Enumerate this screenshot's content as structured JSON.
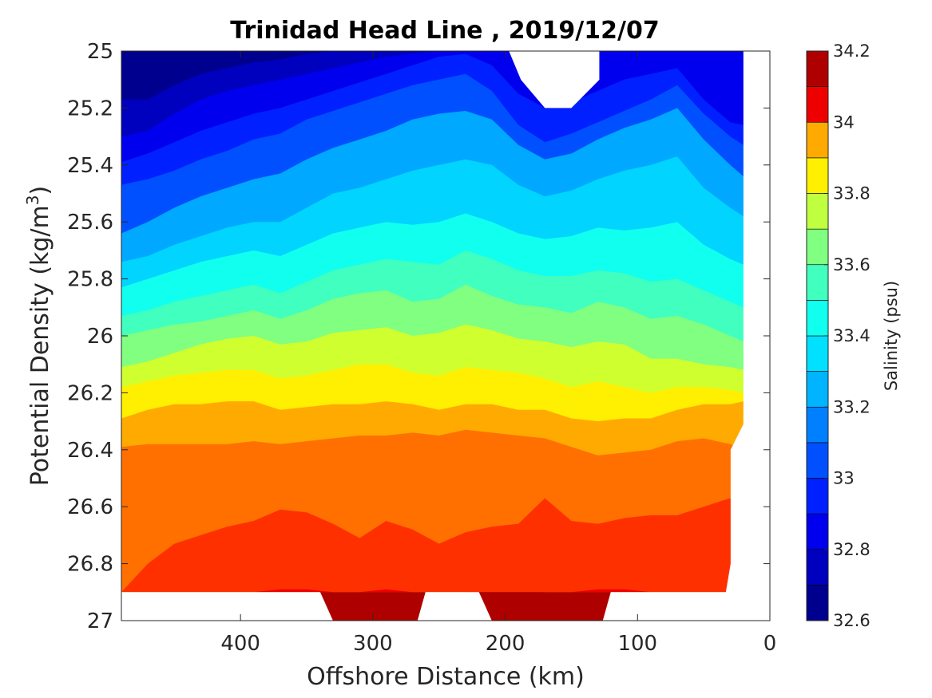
{
  "chart_data": {
    "type": "filled-contour",
    "title": "Trinidad Head Line , 2019/12/07",
    "xlabel": "Offshore Distance (km)",
    "ylabel": "Potential Density (kg/m^3)",
    "ylabel_parts": {
      "main": "Potential Density (kg/m",
      "sup": "3",
      "close": ")"
    },
    "colorbar_label": "Salinity (psu)",
    "xlim": [
      490,
      0
    ],
    "x_reversed": true,
    "ylim": [
      25,
      27
    ],
    "y_reversed": true,
    "xticks": [
      400,
      300,
      200,
      100,
      0
    ],
    "xtick_labels": [
      "400",
      "300",
      "200",
      "100",
      "0"
    ],
    "yticks": [
      25,
      25.2,
      25.4,
      25.6,
      25.8,
      26,
      26.2,
      26.4,
      26.6,
      26.8,
      27
    ],
    "ytick_labels": [
      "25",
      "25.2",
      "25.4",
      "25.6",
      "25.8",
      "26",
      "26.2",
      "26.4",
      "26.6",
      "26.8",
      "27"
    ],
    "colorbar_range": [
      32.6,
      34.2
    ],
    "colorbar_ticks": [
      32.6,
      32.8,
      33,
      33.2,
      33.4,
      33.6,
      33.8,
      34,
      34.2
    ],
    "colorbar_tick_labels": [
      "32.6",
      "32.8",
      "33",
      "33.2",
      "33.4",
      "33.6",
      "33.8",
      "34",
      "34.2"
    ],
    "levels": [
      32.6,
      32.7,
      32.8,
      32.9,
      33.0,
      33.1,
      33.2,
      33.3,
      33.4,
      33.5,
      33.6,
      33.7,
      33.8,
      33.9,
      34.0,
      34.1,
      34.2
    ],
    "colors": [
      "#00008f",
      "#0000bf",
      "#0000ef",
      "#0020ff",
      "#0050ff",
      "#0080ff",
      "#00b0ff",
      "#00e0ff",
      "#10ffef",
      "#40ffbf",
      "#70ff8f",
      "#a0ff60",
      "#d0ff30",
      "#ffff00",
      "#ffcf00",
      "#ff9f00",
      "#ff7000",
      "#ff4000",
      "#ff1000",
      "#df0000",
      "#af0000"
    ],
    "band_colors": [
      "#00008f",
      "#0000bf",
      "#0000ef",
      "#0020ff",
      "#0050ff",
      "#00a8ff",
      "#00d4ff",
      "#10ffef",
      "#40ffbf",
      "#80ff80",
      "#d0ff30",
      "#ffef00",
      "#ffaa00",
      "#ff7000",
      "#ff3000",
      "#ef0000",
      "#af0000"
    ],
    "x_stations": [
      490,
      470,
      450,
      430,
      410,
      390,
      370,
      350,
      330,
      310,
      290,
      270,
      250,
      230,
      210,
      190,
      170,
      150,
      130,
      110,
      90,
      70,
      50,
      30,
      20
    ],
    "contours": [
      {
        "level": 32.7,
        "y": [
          25.17,
          25.17,
          25.12,
          25.08,
          25.06,
          25.04,
          25.03,
          25.01,
          25.0,
          25.0,
          25.0,
          25.0,
          25.0,
          25.0,
          25.0,
          25.0,
          25.0,
          25.0,
          25.0,
          25.0,
          25.0,
          25.0,
          25.05,
          25.1,
          25.12
        ]
      },
      {
        "level": 32.8,
        "y": [
          25.3,
          25.28,
          25.22,
          25.17,
          25.14,
          25.12,
          25.1,
          25.08,
          25.06,
          25.04,
          25.02,
          25.01,
          25.0,
          25.0,
          25.0,
          25.0,
          25.0,
          25.0,
          25.0,
          25.0,
          25.0,
          25.0,
          25.0,
          25.0,
          25.0
        ]
      },
      {
        "level": 32.9,
        "y": [
          25.39,
          25.36,
          25.32,
          25.28,
          25.25,
          25.22,
          25.2,
          25.17,
          25.14,
          25.11,
          25.08,
          25.05,
          25.02,
          25.01,
          25.05,
          25.15,
          25.2,
          25.18,
          25.14,
          25.1,
          25.08,
          25.06,
          25.17,
          25.25,
          25.26
        ]
      },
      {
        "level": 33.0,
        "y": [
          25.47,
          25.45,
          25.42,
          25.38,
          25.35,
          25.31,
          25.29,
          25.24,
          25.21,
          25.18,
          25.15,
          25.12,
          25.1,
          25.08,
          25.14,
          25.26,
          25.32,
          25.29,
          25.25,
          25.21,
          25.17,
          25.12,
          25.22,
          25.3,
          25.33
        ]
      },
      {
        "level": 33.1,
        "y": [
          25.64,
          25.6,
          25.55,
          25.51,
          25.48,
          25.45,
          25.43,
          25.38,
          25.34,
          25.31,
          25.28,
          25.24,
          25.22,
          25.21,
          25.24,
          25.33,
          25.38,
          25.36,
          25.31,
          25.27,
          25.24,
          25.2,
          25.31,
          25.4,
          25.44
        ]
      },
      {
        "level": 33.2,
        "y": [
          25.74,
          25.72,
          25.68,
          25.65,
          25.62,
          25.6,
          25.6,
          25.55,
          25.5,
          25.48,
          25.45,
          25.42,
          25.4,
          25.38,
          25.4,
          25.47,
          25.51,
          25.49,
          25.45,
          25.42,
          25.4,
          25.37,
          25.48,
          25.55,
          25.58
        ]
      },
      {
        "level": 33.3,
        "y": [
          25.83,
          25.8,
          25.77,
          25.74,
          25.72,
          25.7,
          25.72,
          25.68,
          25.64,
          25.62,
          25.6,
          25.61,
          25.6,
          25.57,
          25.6,
          25.64,
          25.66,
          25.65,
          25.62,
          25.63,
          25.62,
          25.6,
          25.68,
          25.73,
          25.75
        ]
      },
      {
        "level": 33.4,
        "y": [
          25.93,
          25.91,
          25.88,
          25.86,
          25.84,
          25.82,
          25.85,
          25.81,
          25.77,
          25.75,
          25.73,
          25.74,
          25.75,
          25.7,
          25.73,
          25.77,
          25.79,
          25.79,
          25.77,
          25.78,
          25.81,
          25.8,
          25.84,
          25.88,
          25.9
        ]
      },
      {
        "level": 33.5,
        "y": [
          26.0,
          25.98,
          25.96,
          25.95,
          25.93,
          25.91,
          25.94,
          25.91,
          25.87,
          25.85,
          25.84,
          25.88,
          25.87,
          25.82,
          25.86,
          25.89,
          25.9,
          25.92,
          25.88,
          25.9,
          25.94,
          25.93,
          25.96,
          26.0,
          26.02
        ]
      },
      {
        "level": 33.6,
        "y": [
          26.11,
          26.09,
          26.06,
          26.03,
          26.01,
          26.0,
          26.03,
          26.02,
          25.99,
          25.98,
          25.97,
          26.0,
          25.99,
          25.96,
          25.98,
          26.01,
          26.02,
          26.04,
          26.02,
          26.03,
          26.08,
          26.08,
          26.1,
          26.11,
          26.12
        ]
      },
      {
        "level": 33.7,
        "y": [
          26.18,
          26.16,
          26.14,
          26.13,
          26.12,
          26.12,
          26.15,
          26.14,
          26.12,
          26.1,
          26.1,
          26.13,
          26.14,
          26.11,
          26.12,
          26.13,
          26.15,
          26.18,
          26.16,
          26.18,
          26.2,
          26.18,
          26.18,
          26.19,
          26.2
        ]
      },
      {
        "level": 33.8,
        "y": [
          26.29,
          26.26,
          26.24,
          26.24,
          26.23,
          26.23,
          26.26,
          26.25,
          26.24,
          26.24,
          26.23,
          26.24,
          26.26,
          26.24,
          26.24,
          26.26,
          26.26,
          26.29,
          26.3,
          26.29,
          26.29,
          26.26,
          26.24,
          26.24,
          26.23
        ]
      },
      {
        "level": 33.9,
        "y": [
          26.39,
          26.38,
          26.38,
          26.38,
          26.38,
          26.37,
          26.38,
          26.37,
          26.36,
          26.35,
          26.35,
          26.34,
          26.35,
          26.33,
          26.34,
          26.35,
          26.36,
          26.39,
          26.42,
          26.41,
          26.4,
          26.37,
          26.36,
          26.38,
          26.4
        ]
      },
      {
        "level": 34.0,
        "y": [
          26.9,
          26.8,
          26.73,
          26.7,
          26.67,
          26.65,
          26.61,
          26.62,
          26.66,
          26.71,
          26.65,
          26.68,
          26.73,
          26.69,
          26.67,
          26.66,
          26.57,
          26.65,
          26.66,
          26.64,
          26.63,
          26.63,
          26.6,
          26.57,
          26.6
        ]
      },
      {
        "level": 34.1,
        "y": [
          26.9,
          26.9,
          26.9,
          26.9,
          26.9,
          26.9,
          26.89,
          26.89,
          26.9,
          26.9,
          26.89,
          26.9,
          26.9,
          26.9,
          26.92,
          26.91,
          26.9,
          26.9,
          26.89,
          26.89,
          26.9,
          26.9,
          26.9,
          26.9,
          26.9
        ]
      }
    ],
    "surface_missing_region": {
      "x": [
        170,
        150
      ],
      "y_max": 25.2
    },
    "bottom_deep_regions": [
      {
        "x": [
          335,
          265
        ],
        "y_max": 27.0,
        "value_min": 34.1
      },
      {
        "x": [
          215,
          125
        ],
        "y_max": 27.0,
        "value_min": 34.1
      }
    ],
    "data_extent_note": "",
    "grid": false,
    "legend": "colorbar-right"
  }
}
